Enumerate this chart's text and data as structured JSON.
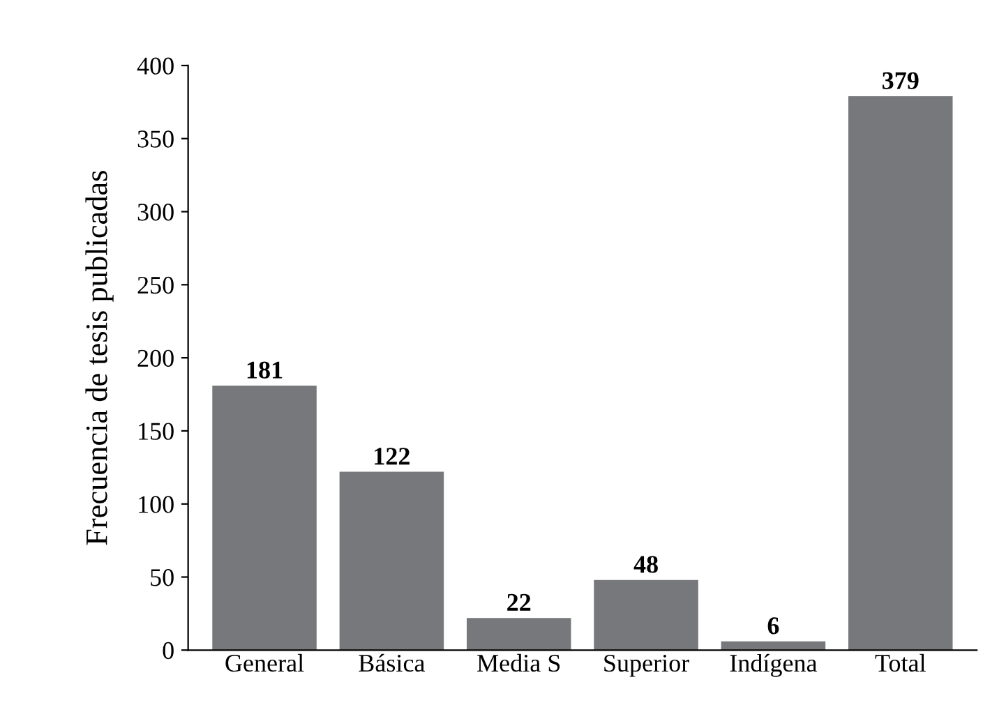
{
  "chart_data": {
    "type": "bar",
    "ylabel": "Frecuencia de tesis publicadas",
    "categories": [
      "General",
      "Básica",
      "Media S",
      "Superior",
      "Indígena",
      "Total"
    ],
    "values": [
      181,
      122,
      22,
      48,
      6,
      379
    ],
    "color": "#77787b",
    "ylim": [
      0,
      400
    ],
    "yticks": [
      0,
      50,
      100,
      150,
      200,
      250,
      300,
      350,
      400
    ],
    "data_labels": true,
    "grid": false,
    "legend": false
  }
}
